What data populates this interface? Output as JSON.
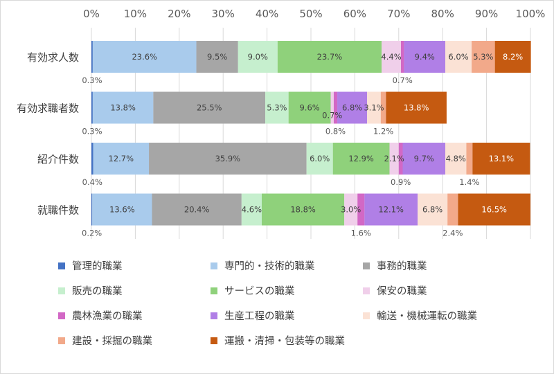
{
  "chart_data": {
    "type": "bar",
    "orientation": "horizontal",
    "stacked": "percent",
    "xlim": [
      0,
      100
    ],
    "x_ticks": [
      "0%",
      "10%",
      "20%",
      "30%",
      "40%",
      "50%",
      "60%",
      "70%",
      "80%",
      "90%",
      "100%"
    ],
    "grid": true,
    "legend_position": "bottom",
    "categories": [
      "有効求人数",
      "有効求職者数",
      "紹介件数",
      "就職件数"
    ],
    "series": [
      {
        "name": "管理的職業",
        "color": "#4472c4",
        "values": [
          0.3,
          0.3,
          0.4,
          0.2
        ]
      },
      {
        "name": "専門的・技術的職業",
        "color": "#a9cbec",
        "values": [
          23.6,
          13.8,
          12.7,
          13.6
        ]
      },
      {
        "name": "事務的職業",
        "color": "#a6a6a6",
        "values": [
          9.5,
          25.5,
          35.9,
          20.4
        ]
      },
      {
        "name": "販売の職業",
        "color": "#c6efce",
        "values": [
          9.0,
          5.3,
          6.0,
          4.6
        ]
      },
      {
        "name": "サービスの職業",
        "color": "#8fd17b",
        "values": [
          23.7,
          9.6,
          12.9,
          18.8
        ]
      },
      {
        "name": "保安の職業",
        "color": "#f0cfea",
        "values": [
          4.4,
          0.7,
          2.1,
          3.0
        ]
      },
      {
        "name": "農林漁業の職業",
        "color": "#d268c5",
        "values": [
          0.7,
          0.8,
          0.9,
          1.6
        ]
      },
      {
        "name": "生産工程の職業",
        "color": "#b07fe6",
        "values": [
          9.4,
          6.8,
          9.7,
          12.1
        ]
      },
      {
        "name": "輸送・機械運転の職業",
        "color": "#fbe2d5",
        "values": [
          6.0,
          3.1,
          4.8,
          6.8
        ]
      },
      {
        "name": "建設・採掘の職業",
        "color": "#f2a98a",
        "values": [
          5.3,
          1.2,
          1.4,
          2.4
        ]
      },
      {
        "name": "運搬・清掃・包装等の職業",
        "color": "#c55a11",
        "values": [
          8.2,
          13.8,
          13.1,
          16.5
        ]
      }
    ],
    "data_labels": [
      [
        {
          "s": 0,
          "text": "0.3%",
          "pos": "below"
        },
        {
          "s": 1,
          "text": "23.6%"
        },
        {
          "s": 2,
          "text": "9.5%"
        },
        {
          "s": 3,
          "text": "9.0%"
        },
        {
          "s": 4,
          "text": "23.7%"
        },
        {
          "s": 5,
          "text": "4.4%"
        },
        {
          "s": 6,
          "text": "0.7%",
          "pos": "below"
        },
        {
          "s": 7,
          "text": "9.4%"
        },
        {
          "s": 8,
          "text": "6.0%"
        },
        {
          "s": 9,
          "text": "5.3%"
        },
        {
          "s": 10,
          "text": "8.2%"
        }
      ],
      [
        {
          "s": 0,
          "text": "0.3%",
          "pos": "below"
        },
        {
          "s": 1,
          "text": "13.8%"
        },
        {
          "s": 2,
          "text": "25.5%"
        },
        {
          "s": 3,
          "text": "5.3%"
        },
        {
          "s": 4,
          "text": "9.6%"
        },
        {
          "s": 5,
          "text": "0.7%",
          "pos": "lower"
        },
        {
          "s": 6,
          "text": "0.8%",
          "pos": "below"
        },
        {
          "s": 7,
          "text": "6.8%"
        },
        {
          "s": 8,
          "text": "3.1%"
        },
        {
          "s": 9,
          "text": "1.2%",
          "pos": "below"
        },
        {
          "s": 10,
          "text": "13.8%"
        }
      ],
      [
        {
          "s": 0,
          "text": "0.4%",
          "pos": "below"
        },
        {
          "s": 1,
          "text": "12.7%"
        },
        {
          "s": 2,
          "text": "35.9%"
        },
        {
          "s": 3,
          "text": "6.0%"
        },
        {
          "s": 4,
          "text": "12.9%"
        },
        {
          "s": 5,
          "text": "2.1%"
        },
        {
          "s": 6,
          "text": "0.9%",
          "pos": "below"
        },
        {
          "s": 7,
          "text": "9.7%"
        },
        {
          "s": 8,
          "text": "4.8%"
        },
        {
          "s": 9,
          "text": "1.4%",
          "pos": "below"
        },
        {
          "s": 10,
          "text": "13.1%"
        }
      ],
      [
        {
          "s": 0,
          "text": "0.2%",
          "pos": "below"
        },
        {
          "s": 1,
          "text": "13.6%"
        },
        {
          "s": 2,
          "text": "20.4%"
        },
        {
          "s": 3,
          "text": "4.6%"
        },
        {
          "s": 4,
          "text": "18.8%"
        },
        {
          "s": 5,
          "text": "3.0%"
        },
        {
          "s": 6,
          "text": "1.6%",
          "pos": "below"
        },
        {
          "s": 7,
          "text": "12.1%"
        },
        {
          "s": 8,
          "text": "6.8%"
        },
        {
          "s": 9,
          "text": "2.4%",
          "pos": "below"
        },
        {
          "s": 10,
          "text": "16.5%"
        }
      ]
    ]
  }
}
